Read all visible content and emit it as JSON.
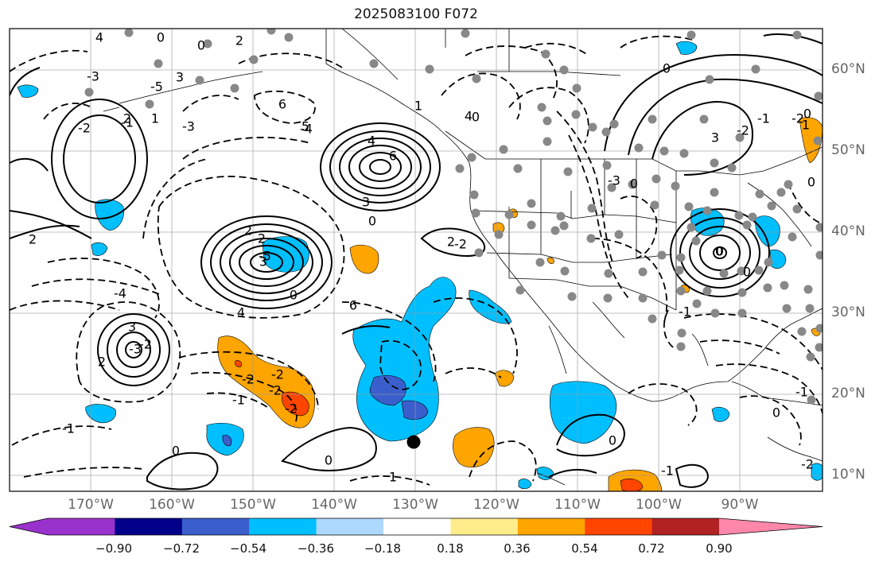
{
  "title": "2025083100 F072",
  "lat_labels": [
    "60°N",
    "50°N",
    "40°N",
    "30°N",
    "20°N",
    "10°N"
  ],
  "lon_labels": [
    "170°W",
    "160°W",
    "150°W",
    "140°W",
    "130°W",
    "120°W",
    "110°W",
    "100°W",
    "90°W"
  ],
  "colorbar": {
    "ticks": [
      "−0.90",
      "−0.72",
      "−0.54",
      "−0.36",
      "−0.18",
      "0.18",
      "0.36",
      "0.54",
      "0.72",
      "0.90"
    ],
    "colors": [
      "#9932cc",
      "#00008b",
      "#3a5fcd",
      "#00bfff",
      "#add8ff",
      "#ffffff",
      "#ffec8b",
      "#ffa500",
      "#ff4500",
      "#b22222",
      "#ff88aa"
    ]
  },
  "contour_labels": [
    "4",
    "0",
    "2",
    "0",
    "-3",
    "6",
    "5",
    "-2",
    "-1",
    "1",
    "-3",
    "-5",
    "4",
    "6",
    "3",
    "0",
    "2",
    "2",
    "-4",
    "-5",
    "0",
    "3",
    "4",
    "6",
    "-4",
    "-3",
    "-2",
    "3",
    "2",
    "-2",
    "-2",
    "-2",
    "-2",
    "-1",
    "-1",
    "0",
    "0",
    "1",
    "2",
    "2",
    "3",
    "4",
    "0",
    "1",
    "2",
    "-2",
    "0",
    "-3",
    "0",
    "3",
    "-2",
    "-1",
    "1",
    "0",
    "0",
    "0",
    "0",
    "-1",
    "0",
    "-1",
    "-2",
    "-1",
    "0",
    "0",
    "-2"
  ],
  "marker": "black-dot"
}
